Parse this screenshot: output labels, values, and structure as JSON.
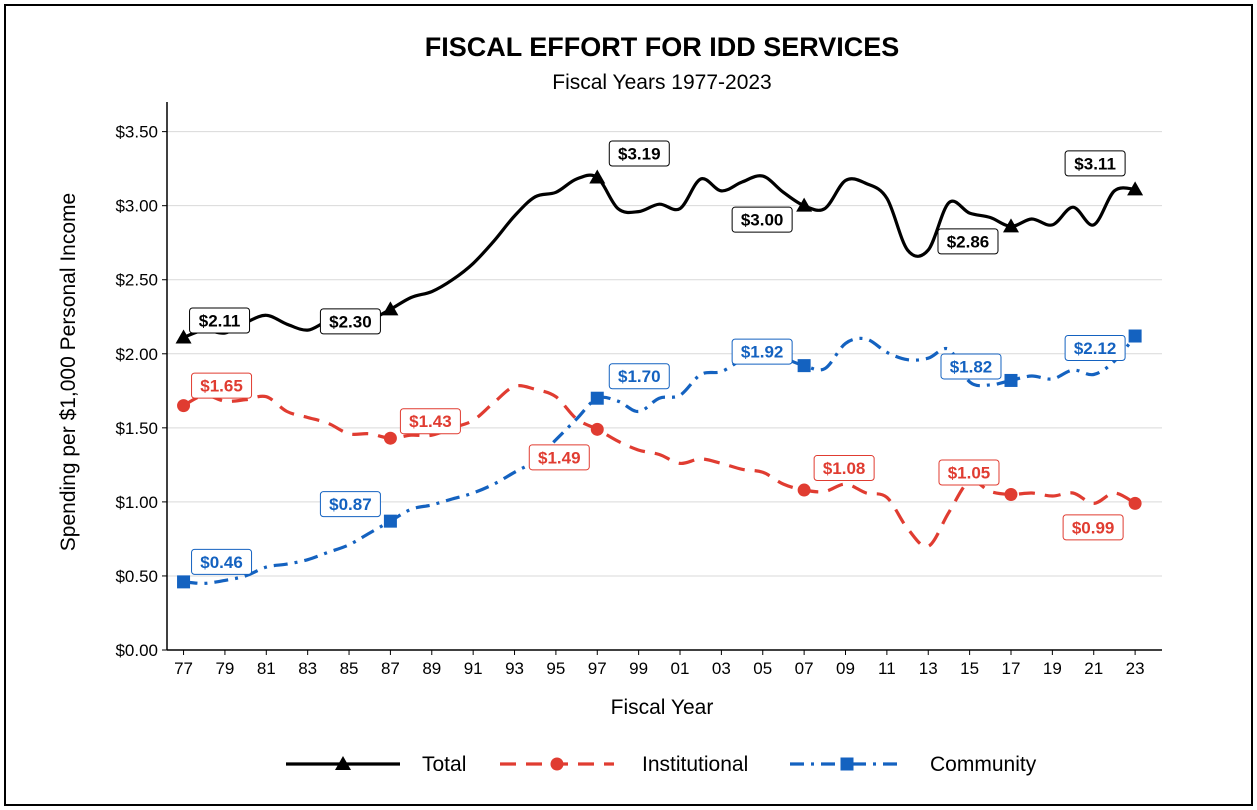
{
  "chart_data": {
    "type": "line",
    "title": "FISCAL EFFORT FOR IDD SERVICES",
    "subtitle": "Fiscal Years 1977-2023",
    "xlabel": "Fiscal Year",
    "ylabel": "Spending per $1,000 Personal Income",
    "x_tick_labels": [
      "77",
      "79",
      "81",
      "83",
      "85",
      "87",
      "89",
      "91",
      "93",
      "95",
      "97",
      "99",
      "01",
      "03",
      "05",
      "07",
      "09",
      "11",
      "13",
      "15",
      "17",
      "19",
      "21",
      "23"
    ],
    "y_tick_labels": [
      "$0.00",
      "$0.50",
      "$1.00",
      "$1.50",
      "$2.00",
      "$2.50",
      "$3.00",
      "$3.50"
    ],
    "y_ticks": [
      0,
      0.5,
      1.0,
      1.5,
      2.0,
      2.5,
      3.0,
      3.5
    ],
    "ylim": [
      0,
      3.7
    ],
    "xlim": [
      1976.2,
      2024.3
    ],
    "grid": "horizontal",
    "legend_position": "bottom",
    "series": [
      {
        "name": "Total",
        "color": "#000000",
        "dash": "solid",
        "marker": "triangle",
        "x": [
          1977,
          1978,
          1979,
          1980,
          1981,
          1982,
          1983,
          1984,
          1985,
          1986,
          1987,
          1988,
          1989,
          1990,
          1991,
          1992,
          1993,
          1994,
          1995,
          1996,
          1997,
          1998,
          1999,
          2000,
          2001,
          2002,
          2003,
          2004,
          2005,
          2006,
          2007,
          2008,
          2009,
          2010,
          2011,
          2012,
          2013,
          2014,
          2015,
          2016,
          2017,
          2018,
          2019,
          2020,
          2021,
          2022,
          2023
        ],
        "y": [
          2.11,
          2.16,
          2.14,
          2.21,
          2.26,
          2.2,
          2.16,
          2.22,
          2.21,
          2.23,
          2.3,
          2.38,
          2.42,
          2.5,
          2.61,
          2.76,
          2.93,
          3.06,
          3.09,
          3.18,
          3.19,
          2.98,
          2.96,
          3.01,
          2.98,
          3.18,
          3.1,
          3.16,
          3.2,
          3.09,
          3.0,
          2.98,
          3.17,
          3.15,
          3.05,
          2.7,
          2.7,
          3.02,
          2.95,
          2.92,
          2.86,
          2.91,
          2.87,
          2.99,
          2.87,
          3.1,
          3.11
        ],
        "marked_points": [
          {
            "x": 1977,
            "label": "$2.11"
          },
          {
            "x": 1987,
            "label": "$2.30"
          },
          {
            "x": 1997,
            "label": "$3.19"
          },
          {
            "x": 2007,
            "label": "$3.00"
          },
          {
            "x": 2017,
            "label": "$2.86"
          },
          {
            "x": 2023,
            "label": "$3.11"
          }
        ]
      },
      {
        "name": "Institutional",
        "color": "#e03c31",
        "dash": "dashed",
        "marker": "circle",
        "x": [
          1977,
          1978,
          1979,
          1980,
          1981,
          1982,
          1983,
          1984,
          1985,
          1986,
          1987,
          1988,
          1989,
          1990,
          1991,
          1992,
          1993,
          1994,
          1995,
          1996,
          1997,
          1998,
          1999,
          2000,
          2001,
          2002,
          2003,
          2004,
          2005,
          2006,
          2007,
          2008,
          2009,
          2010,
          2011,
          2012,
          2013,
          2014,
          2015,
          2016,
          2017,
          2018,
          2019,
          2020,
          2021,
          2022,
          2023
        ],
        "y": [
          1.65,
          1.72,
          1.68,
          1.69,
          1.71,
          1.61,
          1.57,
          1.53,
          1.46,
          1.46,
          1.43,
          1.45,
          1.45,
          1.5,
          1.55,
          1.67,
          1.78,
          1.76,
          1.71,
          1.56,
          1.49,
          1.41,
          1.35,
          1.32,
          1.26,
          1.29,
          1.26,
          1.22,
          1.2,
          1.12,
          1.08,
          1.07,
          1.12,
          1.06,
          1.03,
          0.82,
          0.7,
          0.93,
          1.14,
          1.07,
          1.05,
          1.06,
          1.04,
          1.06,
          0.99,
          1.06,
          0.99
        ],
        "marked_points": [
          {
            "x": 1977,
            "label": "$1.65"
          },
          {
            "x": 1987,
            "label": "$1.43"
          },
          {
            "x": 1997,
            "label": "$1.49"
          },
          {
            "x": 2007,
            "label": "$1.08"
          },
          {
            "x": 2017,
            "label": "$1.05"
          },
          {
            "x": 2023,
            "label": "$0.99"
          }
        ]
      },
      {
        "name": "Community",
        "color": "#1462c0",
        "dash": "dashdot",
        "marker": "square",
        "x": [
          1977,
          1978,
          1979,
          1980,
          1981,
          1982,
          1983,
          1984,
          1985,
          1986,
          1987,
          1988,
          1989,
          1990,
          1991,
          1992,
          1993,
          1994,
          1995,
          1996,
          1997,
          1998,
          1999,
          2000,
          2001,
          2002,
          2003,
          2004,
          2005,
          2006,
          2007,
          2008,
          2009,
          2010,
          2011,
          2012,
          2013,
          2014,
          2015,
          2016,
          2017,
          2018,
          2019,
          2020,
          2021,
          2022,
          2023
        ],
        "y": [
          0.46,
          0.45,
          0.47,
          0.5,
          0.56,
          0.58,
          0.61,
          0.66,
          0.71,
          0.79,
          0.87,
          0.95,
          0.98,
          1.02,
          1.06,
          1.12,
          1.2,
          1.28,
          1.42,
          1.56,
          1.7,
          1.68,
          1.61,
          1.7,
          1.72,
          1.86,
          1.88,
          1.96,
          2.0,
          1.97,
          1.92,
          1.9,
          2.07,
          2.1,
          2.01,
          1.96,
          1.97,
          2.03,
          1.81,
          1.79,
          1.82,
          1.85,
          1.83,
          1.89,
          1.86,
          1.95,
          2.12
        ],
        "marked_points": [
          {
            "x": 1977,
            "label": "$0.46"
          },
          {
            "x": 1987,
            "label": "$0.87"
          },
          {
            "x": 1997,
            "label": "$1.70"
          },
          {
            "x": 2007,
            "label": "$1.92"
          },
          {
            "x": 2017,
            "label": "$1.82"
          },
          {
            "x": 2023,
            "label": "$2.12"
          }
        ]
      }
    ]
  }
}
